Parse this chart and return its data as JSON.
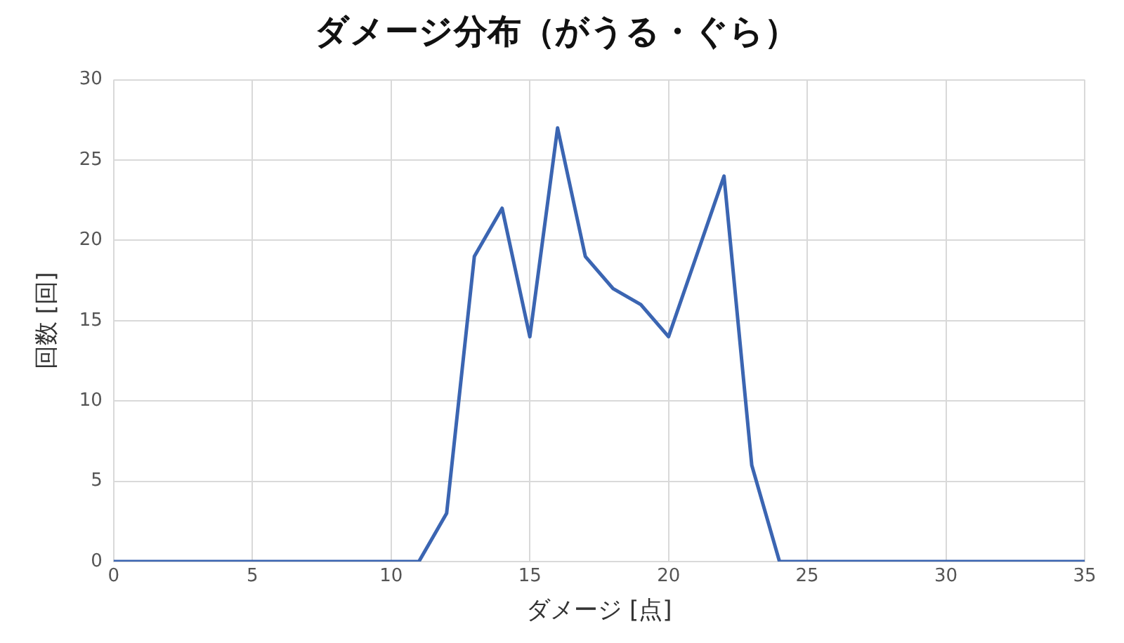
{
  "chart_data": {
    "type": "line",
    "title": "ダメージ分布（がうる・ぐら）",
    "xlabel": "ダメージ [点]",
    "ylabel": "回数 [回]",
    "x": [
      0,
      1,
      2,
      3,
      4,
      5,
      6,
      7,
      8,
      9,
      10,
      11,
      12,
      13,
      14,
      15,
      16,
      17,
      18,
      19,
      20,
      21,
      22,
      23,
      24,
      25,
      26,
      27,
      28,
      29,
      30,
      31,
      32,
      33,
      34,
      35
    ],
    "series": [
      {
        "color": "#3b65b2",
        "values": [
          0,
          0,
          0,
          0,
          0,
          0,
          0,
          0,
          0,
          0,
          0,
          0,
          3,
          19,
          22,
          14,
          27,
          19,
          17,
          16,
          14,
          19,
          24,
          6,
          0,
          0,
          0,
          0,
          0,
          0,
          0,
          0,
          0,
          0,
          0,
          0
        ]
      }
    ],
    "xlim": [
      0,
      35
    ],
    "xticks": [
      0,
      5,
      10,
      15,
      20,
      25,
      30,
      35
    ],
    "ylim": [
      0,
      30
    ],
    "yticks": [
      0,
      5,
      10,
      15,
      20,
      25,
      30
    ],
    "grid": true,
    "legend": false,
    "marker": "none",
    "line_style": "solid"
  }
}
